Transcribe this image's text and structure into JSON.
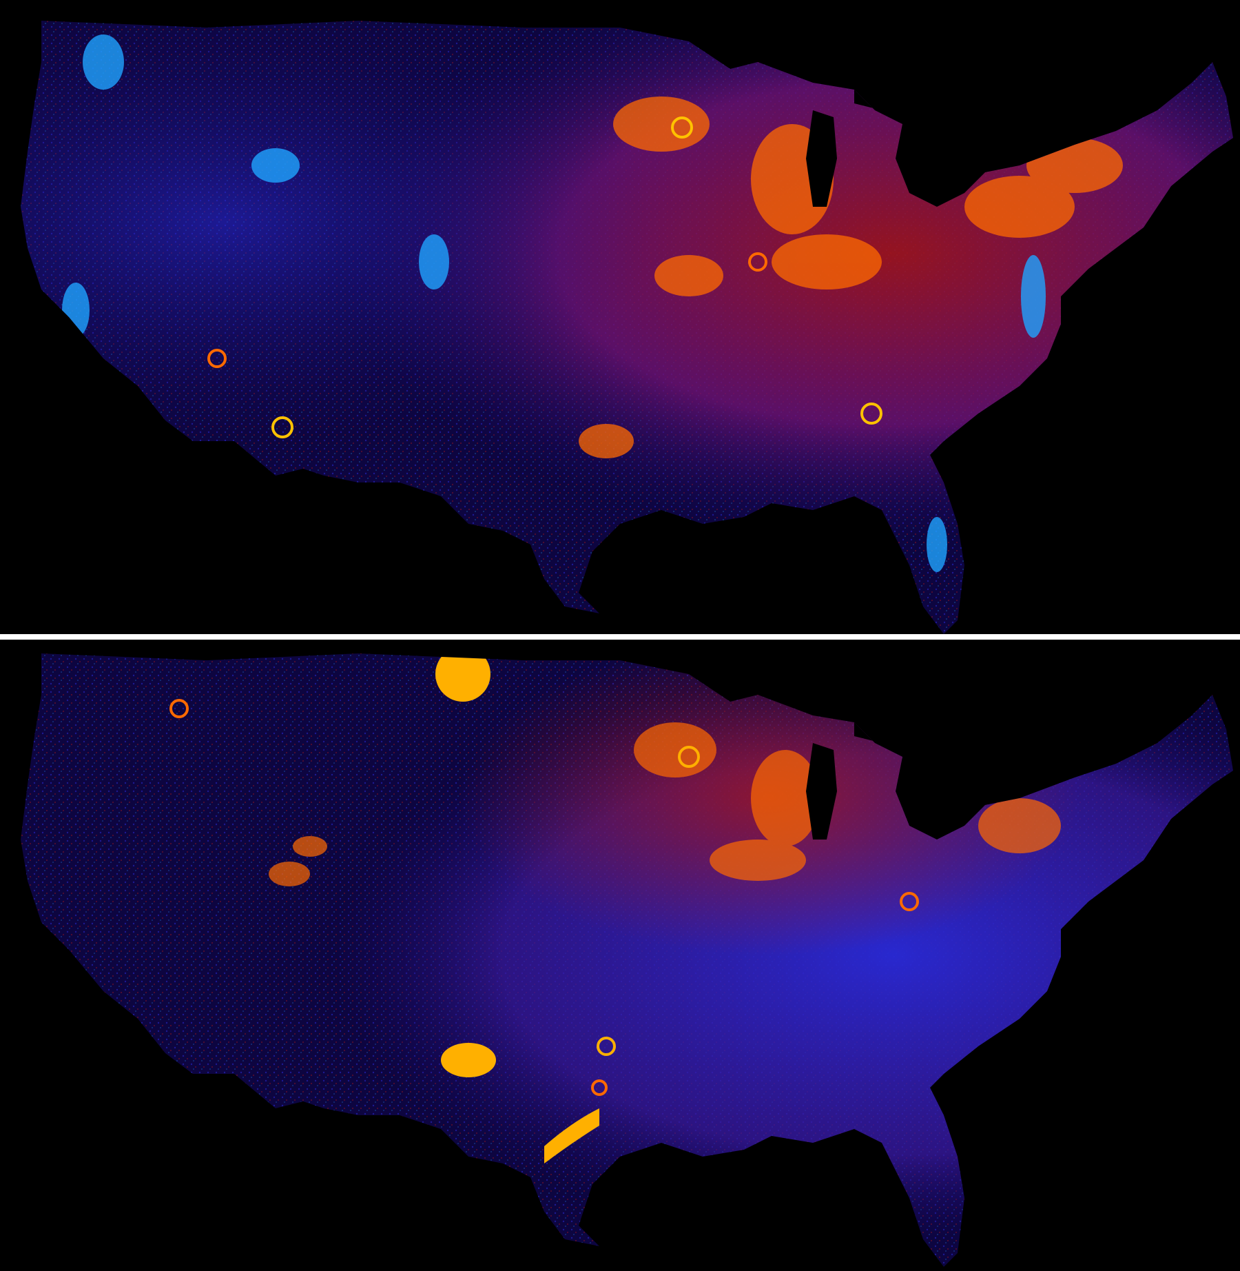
{
  "panels": [
    {
      "id": "top",
      "palette": {
        "background": "#000000",
        "low": "#1a0a6e",
        "mid_blue": "#2a2ad6",
        "cyan": "#1fa4ff",
        "red": "#a3151c",
        "orange": "#ff6a00",
        "yellow": "#ffc200"
      }
    },
    {
      "id": "bottom",
      "palette": {
        "background": "#000000",
        "low": "#1a0a6e",
        "mid_blue": "#2a2ad6",
        "cyan": "#1f8cff",
        "red": "#a3151c",
        "orange": "#ff6a00",
        "yellow": "#ffb000"
      }
    }
  ]
}
